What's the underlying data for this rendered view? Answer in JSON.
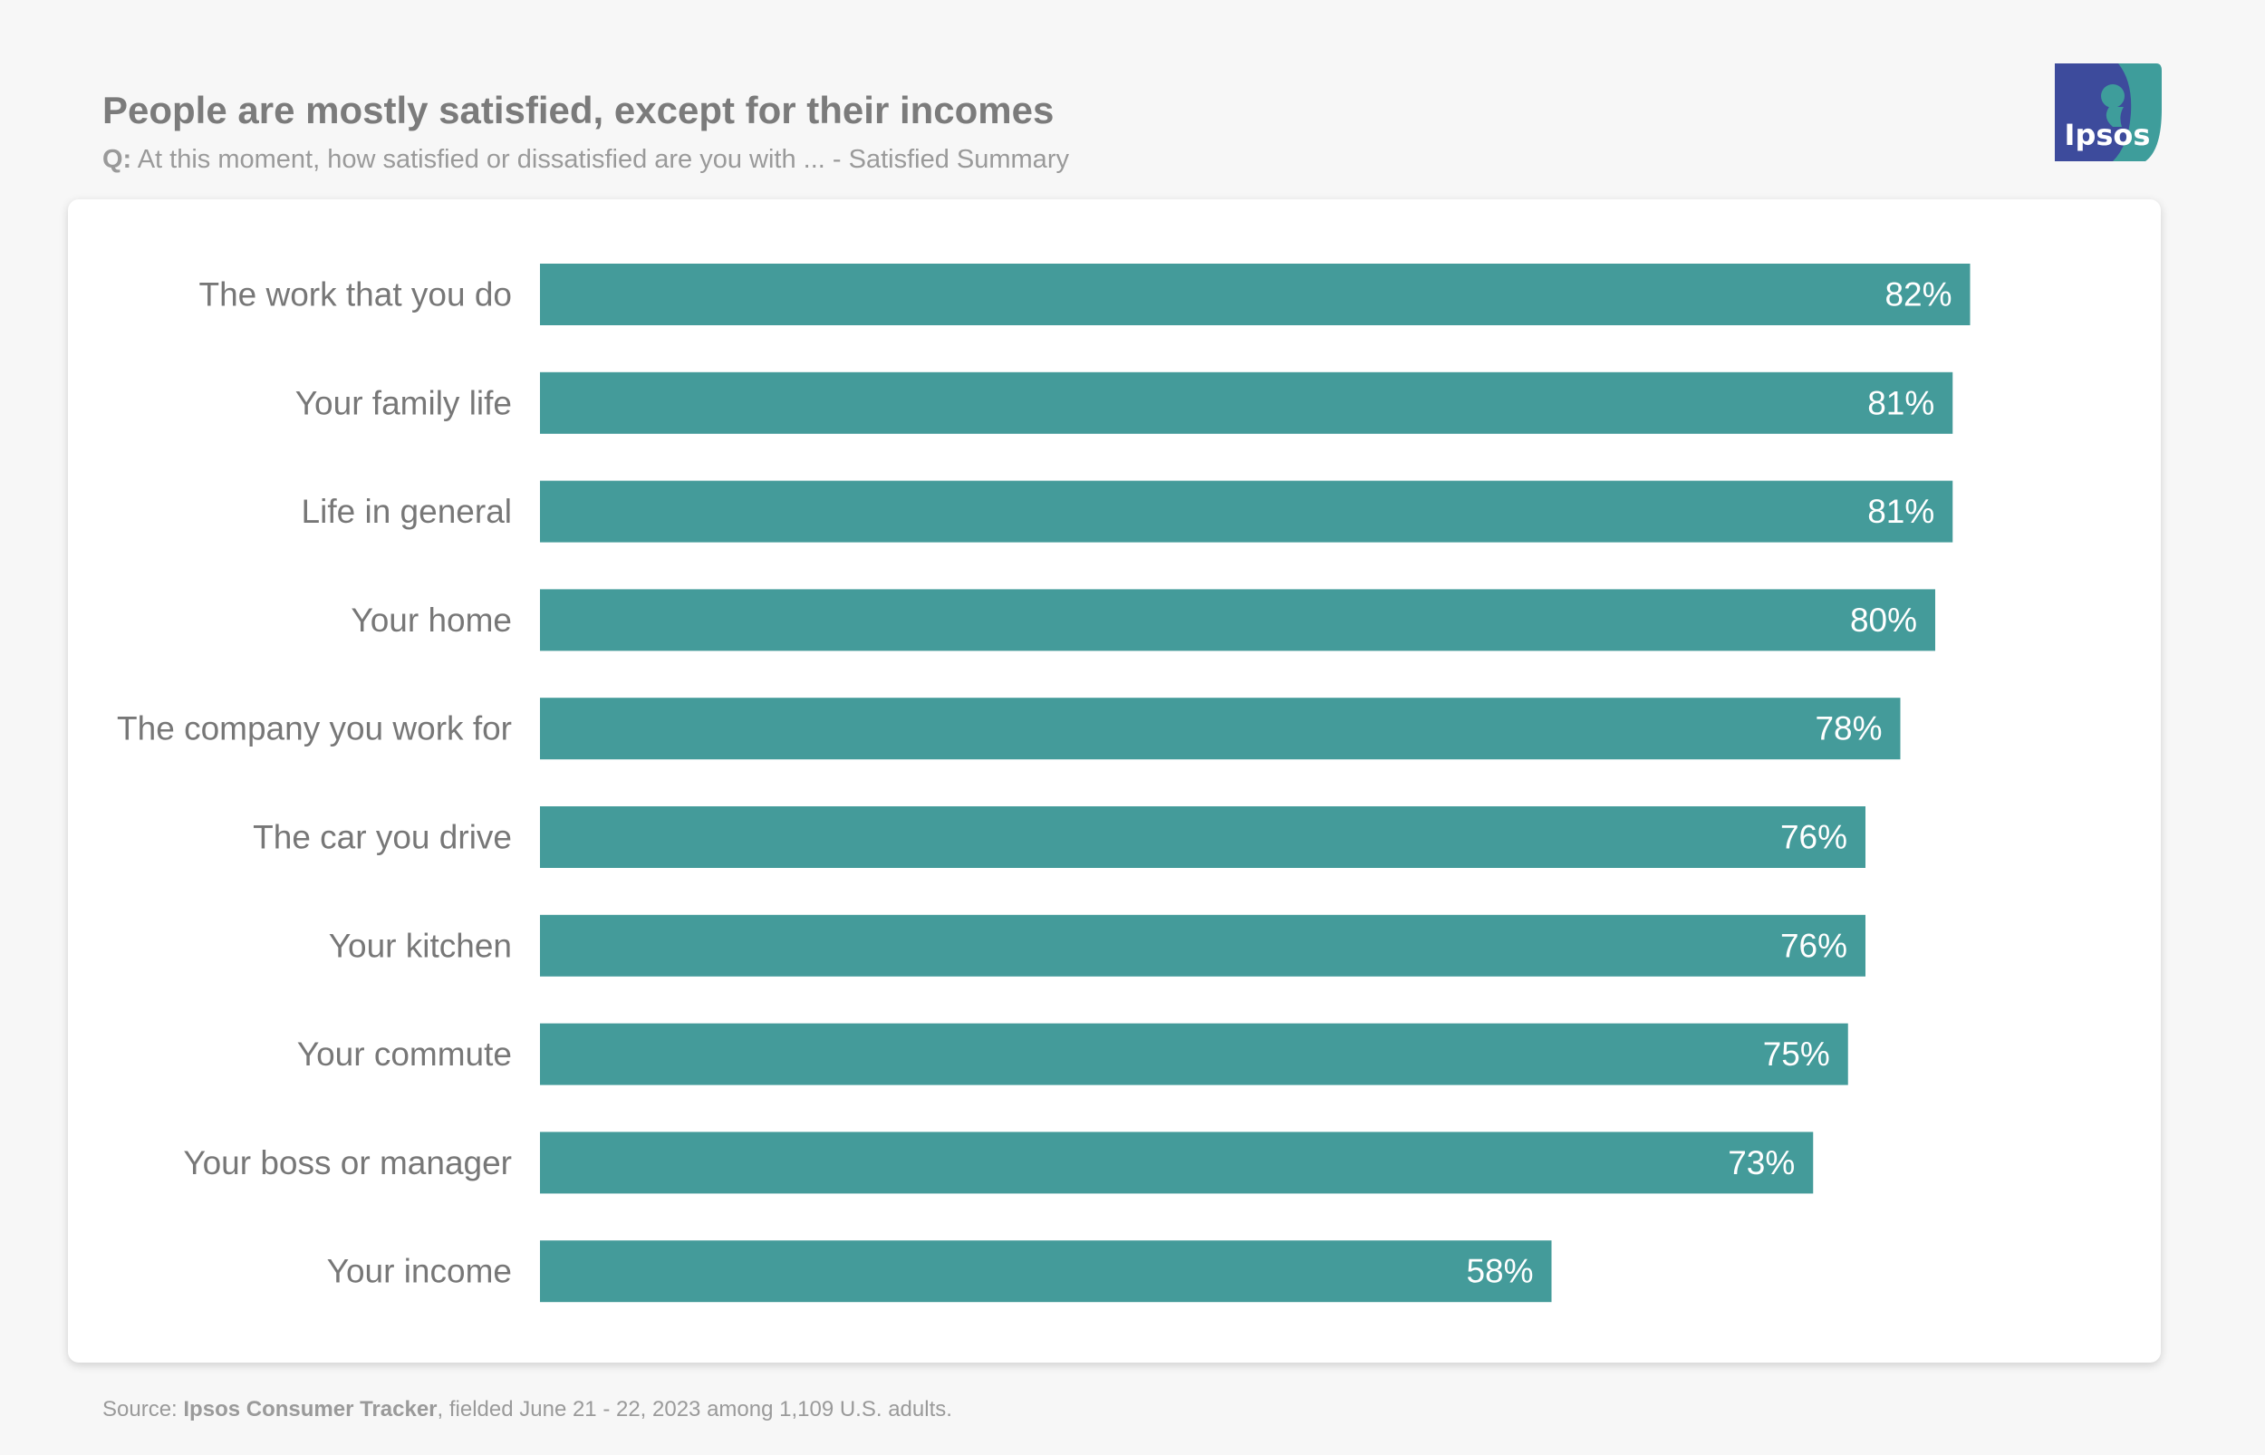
{
  "header": {
    "title": "People are mostly satisfied, except for their incomes",
    "question_prefix": "Q:",
    "question_text": "At this moment, how satisfied or dissatisfied are you with ...  - Satisfied Summary"
  },
  "logo": {
    "text": "Ipsos",
    "icon": "ipsos-logo-icon",
    "colors": {
      "primary": "#3d4b9c",
      "secondary": "#3e9d9b"
    }
  },
  "footer": {
    "source_label": "Source: ",
    "source_name": "Ipsos Consumer Tracker",
    "source_rest": ", fielded June 21 - 22, 2023 among 1,109 U.S. adults."
  },
  "colors": {
    "bar": "#449b9a",
    "bar_label": "#ffffff",
    "category_label": "#777777"
  },
  "chart_data": {
    "type": "bar",
    "orientation": "horizontal",
    "title": "People are mostly satisfied, except for their incomes",
    "xlabel": "",
    "ylabel": "",
    "xlim": [
      0,
      100
    ],
    "grid": false,
    "legend": "none",
    "value_suffix": "%",
    "categories": [
      "The work that you do",
      "Your family life",
      "Life in general",
      "Your home",
      "The company you work for",
      "The car you drive",
      "Your kitchen",
      "Your commute",
      "Your boss or manager",
      "Your income"
    ],
    "values": [
      82,
      81,
      81,
      80,
      78,
      76,
      76,
      75,
      73,
      58
    ]
  }
}
